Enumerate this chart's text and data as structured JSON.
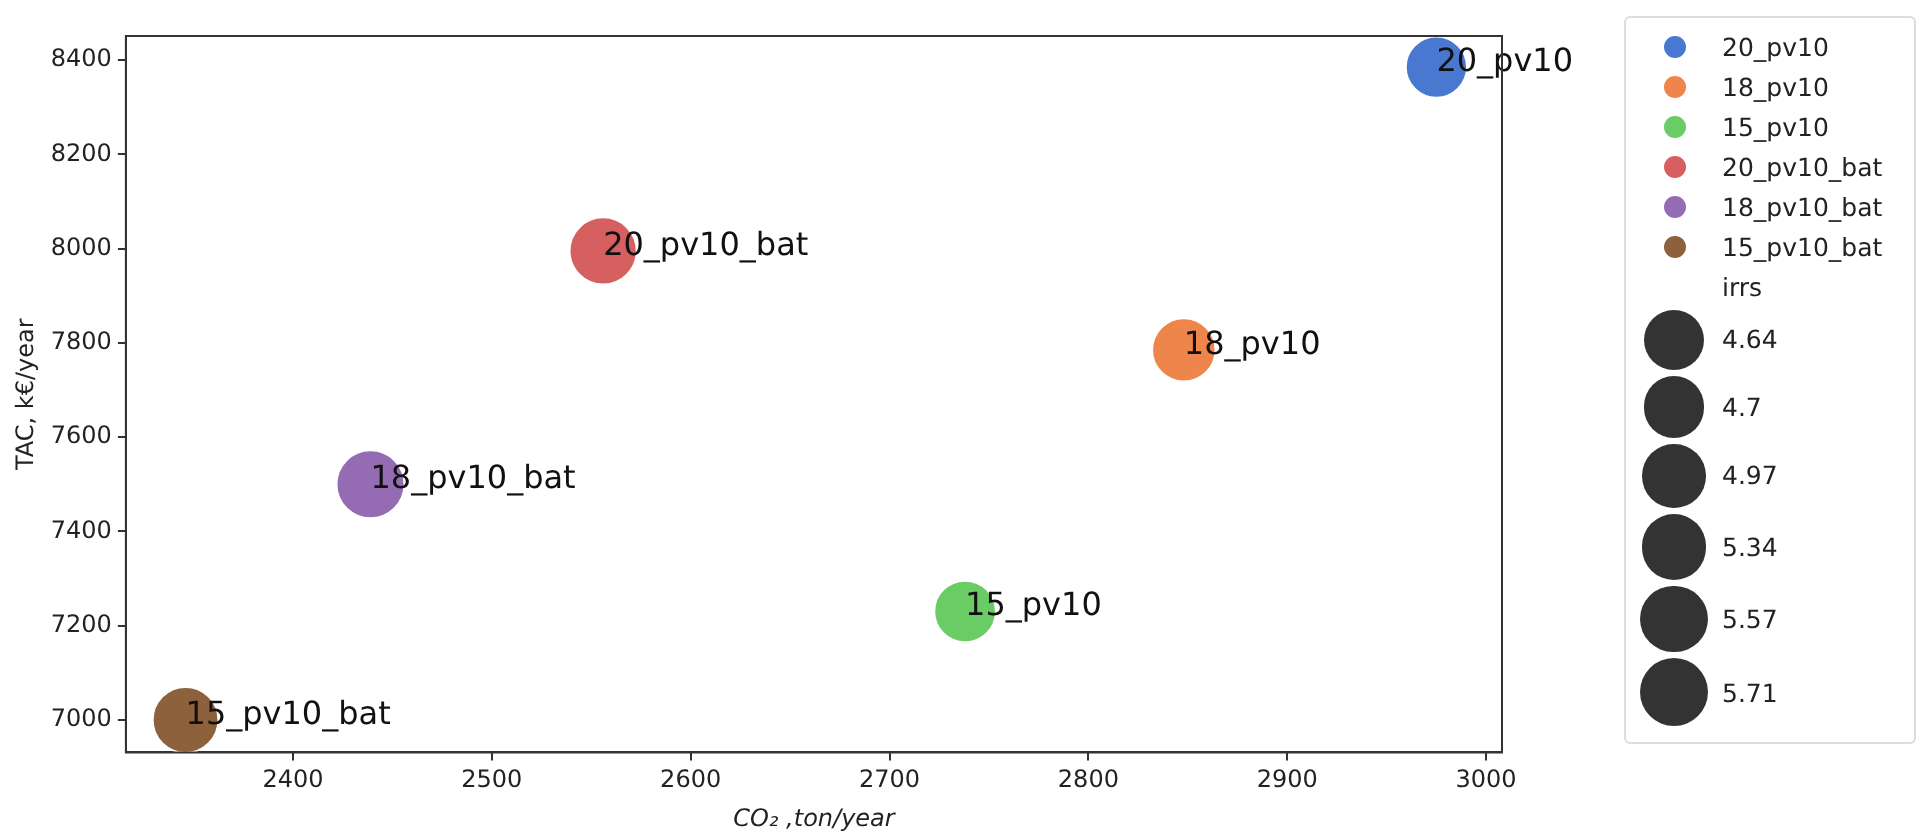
{
  "chart_data": {
    "type": "bubble",
    "xlabel": "CO₂ ,ton/year",
    "ylabel": "TAC, k€/year",
    "legend_title": "irrs",
    "xlim": [
      2316,
      3008
    ],
    "xticks": [
      2400,
      2500,
      2600,
      2700,
      2800,
      2900,
      3000
    ],
    "ylim": [
      6931,
      8451
    ],
    "yticks": [
      7000,
      7200,
      7400,
      7600,
      7800,
      8000,
      8200,
      8400
    ],
    "size_legend": [
      4.64,
      4.7,
      4.97,
      5.34,
      5.57,
      5.71
    ],
    "grid": false,
    "legend": "right",
    "marker": "circle",
    "series": [
      {
        "name": "20_pv10",
        "color": "#4878d0",
        "x": [
          2975
        ],
        "values": [
          8385
        ],
        "sizes": [
          4.64
        ]
      },
      {
        "name": "18_pv10",
        "color": "#ee854a",
        "x": [
          2848
        ],
        "values": [
          7785
        ],
        "sizes": [
          4.97
        ]
      },
      {
        "name": "15_pv10",
        "color": "#6acc64",
        "x": [
          2738
        ],
        "values": [
          7230
        ],
        "sizes": [
          4.7
        ]
      },
      {
        "name": "20_pv10_bat",
        "color": "#d65f5f",
        "x": [
          2556
        ],
        "values": [
          7995
        ],
        "sizes": [
          5.57
        ]
      },
      {
        "name": "18_pv10_bat",
        "color": "#956cb4",
        "x": [
          2439
        ],
        "values": [
          7500
        ],
        "sizes": [
          5.71
        ]
      },
      {
        "name": "15_pv10_bat",
        "color": "#8c613c",
        "x": [
          2346
        ],
        "values": [
          7000
        ],
        "sizes": [
          5.34
        ]
      }
    ]
  }
}
